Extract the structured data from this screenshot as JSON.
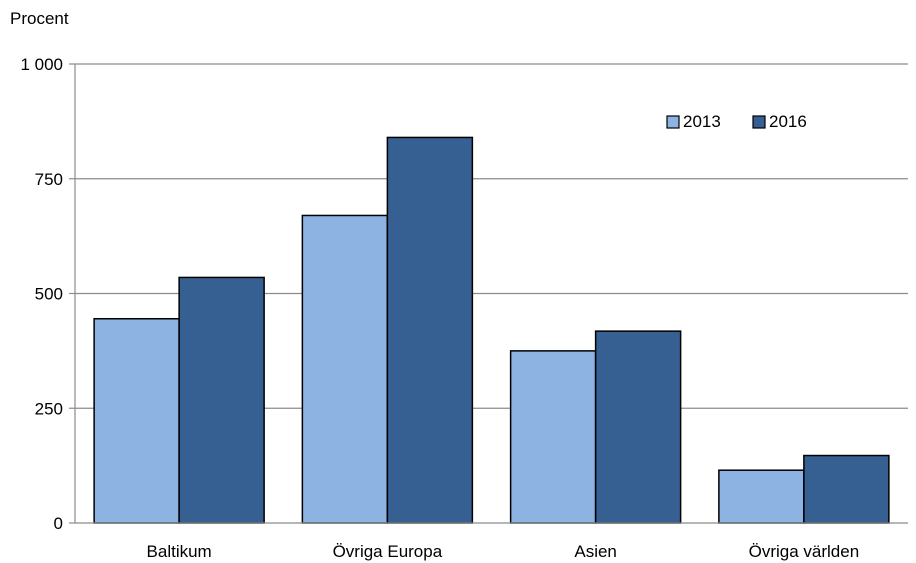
{
  "chart_data": {
    "type": "bar",
    "title": "",
    "ylabel": "Procent",
    "xlabel": "",
    "categories": [
      "Baltikum",
      "Övriga Europa",
      "Asien",
      "Övriga världen"
    ],
    "series": [
      {
        "name": "2013",
        "values": [
          445,
          670,
          375,
          115
        ],
        "color": "#8db3e2"
      },
      {
        "name": "2016",
        "values": [
          535,
          840,
          418,
          147
        ],
        "color": "#376092"
      }
    ],
    "ylim": [
      0,
      1000
    ],
    "yticks": [
      0,
      250,
      500,
      750,
      1000
    ],
    "ytick_labels": [
      "0",
      "250",
      "500",
      "750",
      "1 000"
    ],
    "grid": true,
    "legend_position": "top-right"
  },
  "colors": {
    "grid": "#8c8c8c",
    "bar_stroke": "#000000"
  }
}
